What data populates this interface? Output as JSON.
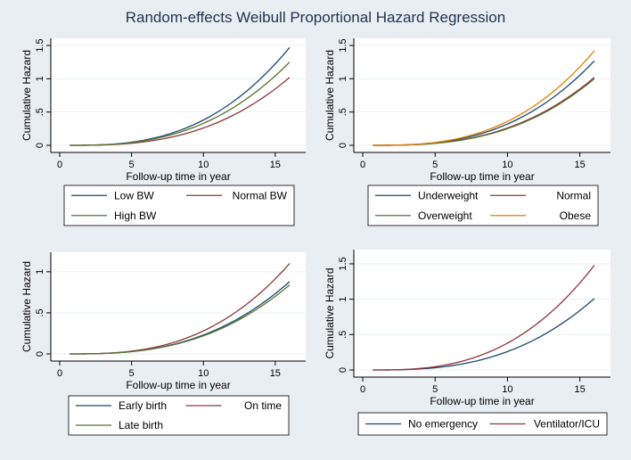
{
  "figure": {
    "title": "Random-effects Weibull Proportional Hazard Regression"
  },
  "colors": {
    "navy": "#1a476f",
    "maroon": "#90353b",
    "green": "#55752f",
    "orange": "#e37e00",
    "plot_bg": "#ffffff",
    "page_bg": "#e9eef3"
  },
  "chart_data": [
    {
      "type": "line",
      "title": "",
      "xlabel": "Follow-up time in year",
      "ylabel": "Cumulative Hazard",
      "xlim": [
        0,
        16.5
      ],
      "ylim": [
        0,
        1.5
      ],
      "xticks": [
        0,
        5,
        10,
        15
      ],
      "yticks": [
        0,
        0.5,
        1,
        1.5
      ],
      "xtick_labels": [
        "0",
        "5",
        "10",
        "15"
      ],
      "ytick_labels": [
        "0",
        ".5",
        "1",
        "1.5"
      ],
      "grid": "horizontal",
      "legend_position": "bottom",
      "series": [
        {
          "name": "Low BW",
          "color": "#1a476f",
          "x": [
            0.7,
            5,
            10,
            16
          ],
          "y": [
            0,
            0.06,
            0.38,
            1.47
          ]
        },
        {
          "name": "Normal BW",
          "color": "#90353b",
          "x": [
            0.7,
            5,
            10,
            16
          ],
          "y": [
            0,
            0.04,
            0.26,
            1.02
          ]
        },
        {
          "name": "High BW",
          "color": "#55752f",
          "x": [
            0.7,
            5,
            10,
            16
          ],
          "y": [
            0,
            0.05,
            0.33,
            1.25
          ]
        }
      ]
    },
    {
      "type": "line",
      "title": "",
      "xlabel": "Follow-up time in year",
      "ylabel": "Cumulative Hazard",
      "xlim": [
        0,
        16.5
      ],
      "ylim": [
        0,
        1.5
      ],
      "xticks": [
        0,
        5,
        10,
        15
      ],
      "yticks": [
        0,
        0.5,
        1,
        1.5
      ],
      "xtick_labels": [
        "0",
        "5",
        "10",
        "15"
      ],
      "ytick_labels": [
        "0",
        ".5",
        "1",
        "1.5"
      ],
      "grid": "horizontal",
      "legend_position": "bottom",
      "series": [
        {
          "name": "Underweight",
          "color": "#1a476f",
          "x": [
            0.7,
            5,
            10,
            16
          ],
          "y": [
            0,
            0.05,
            0.32,
            1.27
          ]
        },
        {
          "name": "Normal",
          "color": "#90353b",
          "x": [
            0.7,
            5,
            10,
            16
          ],
          "y": [
            0,
            0.04,
            0.26,
            1.02
          ]
        },
        {
          "name": "Overweight",
          "color": "#55752f",
          "x": [
            0.7,
            5,
            10,
            16
          ],
          "y": [
            0,
            0.04,
            0.25,
            1.0
          ]
        },
        {
          "name": "Obese",
          "color": "#e37e00",
          "x": [
            0.7,
            5,
            10,
            16
          ],
          "y": [
            0,
            0.06,
            0.36,
            1.42
          ]
        }
      ]
    },
    {
      "type": "line",
      "title": "",
      "xlabel": "Follow-up time in year",
      "ylabel": "Cumulative Hazard",
      "xlim": [
        0,
        16.5
      ],
      "ylim": [
        0,
        1.15
      ],
      "xticks": [
        0,
        5,
        10,
        15
      ],
      "yticks": [
        0,
        0.5,
        1
      ],
      "xtick_labels": [
        "0",
        "5",
        "10",
        "15"
      ],
      "ytick_labels": [
        "0",
        ".5",
        "1"
      ],
      "grid": "horizontal",
      "legend_position": "bottom",
      "series": [
        {
          "name": "Early birth",
          "color": "#1a476f",
          "x": [
            0.7,
            5,
            10,
            16
          ],
          "y": [
            0,
            0.04,
            0.23,
            0.88
          ]
        },
        {
          "name": "On time",
          "color": "#90353b",
          "x": [
            0.7,
            5,
            10,
            16
          ],
          "y": [
            0,
            0.045,
            0.28,
            1.1
          ]
        },
        {
          "name": "Late birth",
          "color": "#55752f",
          "x": [
            0.7,
            5,
            10,
            16
          ],
          "y": [
            0,
            0.04,
            0.22,
            0.84
          ]
        }
      ]
    },
    {
      "type": "line",
      "title": "",
      "xlabel": "Follow-up time in year",
      "ylabel": "Cumulative Hazard",
      "xlim": [
        0,
        16.5
      ],
      "ylim": [
        0,
        1.6
      ],
      "xticks": [
        0,
        5,
        10,
        15
      ],
      "yticks": [
        0,
        0.5,
        1,
        1.5
      ],
      "xtick_labels": [
        "0",
        "5",
        "10",
        "15"
      ],
      "ytick_labels": [
        "0",
        ".5",
        "1",
        "1.5"
      ],
      "grid": "horizontal",
      "legend_position": "bottom",
      "series": [
        {
          "name": "No emergency",
          "color": "#1a476f",
          "x": [
            0.7,
            5,
            10,
            16
          ],
          "y": [
            0,
            0.04,
            0.26,
            1.01
          ]
        },
        {
          "name": "Ventilator/ICU",
          "color": "#90353b",
          "x": [
            0.7,
            5,
            10,
            16
          ],
          "y": [
            0,
            0.06,
            0.38,
            1.48
          ]
        }
      ]
    }
  ]
}
